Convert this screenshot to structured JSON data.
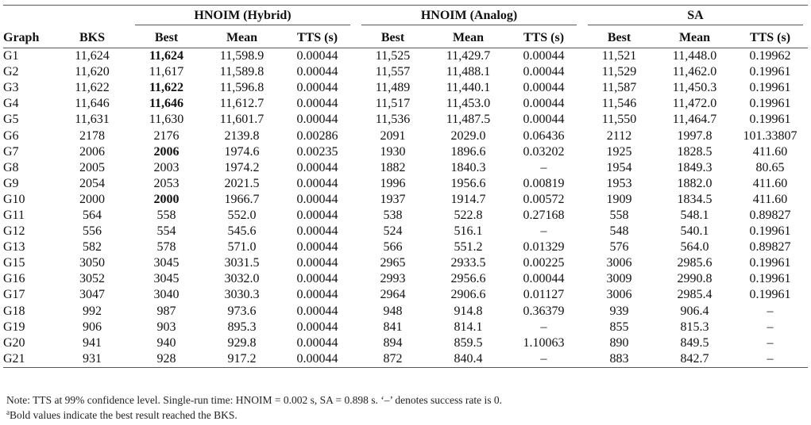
{
  "groups": [
    "HNOIM (Hybrid)",
    "HNOIM (Analog)",
    "SA"
  ],
  "headers": {
    "graph": "Graph",
    "bks": "BKS",
    "best": "Best",
    "mean": "Mean",
    "tts": "TTS (s)"
  },
  "rows": [
    {
      "g": "G1",
      "bks": "11,624",
      "v": [
        "11,624",
        "11,598.9",
        "0.00044",
        "11,525",
        "11,429.7",
        "0.00044",
        "11,521",
        "11,448.0",
        "0.19962"
      ],
      "bold": [
        0
      ]
    },
    {
      "g": "G2",
      "bks": "11,620",
      "v": [
        "11,617",
        "11,589.8",
        "0.00044",
        "11,557",
        "11,488.1",
        "0.00044",
        "11,529",
        "11,462.0",
        "0.19961"
      ],
      "bold": []
    },
    {
      "g": "G3",
      "bks": "11,622",
      "v": [
        "11,622",
        "11,596.8",
        "0.00044",
        "11,489",
        "11,440.1",
        "0.00044",
        "11,587",
        "11,450.3",
        "0.19961"
      ],
      "bold": [
        0
      ]
    },
    {
      "g": "G4",
      "bks": "11,646",
      "v": [
        "11,646",
        "11,612.7",
        "0.00044",
        "11,517",
        "11,453.0",
        "0.00044",
        "11,546",
        "11,472.0",
        "0.19961"
      ],
      "bold": [
        0
      ]
    },
    {
      "g": "G5",
      "bks": "11,631",
      "v": [
        "11,630",
        "11,601.7",
        "0.00044",
        "11,536",
        "11,487.5",
        "0.00044",
        "11,550",
        "11,464.7",
        "0.19961"
      ],
      "bold": []
    },
    {
      "g": "G6",
      "bks": "2178",
      "v": [
        "2176",
        "2139.8",
        "0.00286",
        "2091",
        "2029.0",
        "0.06436",
        "2112",
        "1997.8",
        "101.33807"
      ],
      "bold": []
    },
    {
      "g": "G7",
      "bks": "2006",
      "v": [
        "2006",
        "1974.6",
        "0.00235",
        "1930",
        "1896.6",
        "0.03202",
        "1925",
        "1828.5",
        "411.60"
      ],
      "bold": [
        0
      ]
    },
    {
      "g": "G8",
      "bks": "2005",
      "v": [
        "2003",
        "1974.2",
        "0.00044",
        "1882",
        "1840.3",
        "–",
        "1954",
        "1849.3",
        "80.65"
      ],
      "bold": []
    },
    {
      "g": "G9",
      "bks": "2054",
      "v": [
        "2053",
        "2021.5",
        "0.00044",
        "1996",
        "1956.6",
        "0.00819",
        "1953",
        "1882.0",
        "411.60"
      ],
      "bold": []
    },
    {
      "g": "G10",
      "bks": "2000",
      "v": [
        "2000",
        "1966.7",
        "0.00044",
        "1937",
        "1914.7",
        "0.00572",
        "1909",
        "1834.5",
        "411.60"
      ],
      "bold": [
        0
      ]
    },
    {
      "g": "G11",
      "bks": "564",
      "v": [
        "558",
        "552.0",
        "0.00044",
        "538",
        "522.8",
        "0.27168",
        "558",
        "548.1",
        "0.89827"
      ],
      "bold": []
    },
    {
      "g": "G12",
      "bks": "556",
      "v": [
        "554",
        "545.6",
        "0.00044",
        "524",
        "516.1",
        "–",
        "548",
        "540.1",
        "0.19961"
      ],
      "bold": []
    },
    {
      "g": "G13",
      "bks": "582",
      "v": [
        "578",
        "571.0",
        "0.00044",
        "566",
        "551.2",
        "0.01329",
        "576",
        "564.0",
        "0.89827"
      ],
      "bold": []
    },
    {
      "g": "G15",
      "bks": "3050",
      "v": [
        "3045",
        "3031.5",
        "0.00044",
        "2965",
        "2933.5",
        "0.00225",
        "3006",
        "2985.6",
        "0.19961"
      ],
      "bold": []
    },
    {
      "g": "G16",
      "bks": "3052",
      "v": [
        "3045",
        "3032.0",
        "0.00044",
        "2993",
        "2956.6",
        "0.00044",
        "3009",
        "2990.8",
        "0.19961"
      ],
      "bold": []
    },
    {
      "g": "G17",
      "bks": "3047",
      "v": [
        "3040",
        "3030.3",
        "0.00044",
        "2964",
        "2906.6",
        "0.01127",
        "3006",
        "2985.4",
        "0.19961"
      ],
      "bold": []
    },
    {
      "g": "G18",
      "bks": "992",
      "v": [
        "987",
        "973.6",
        "0.00044",
        "948",
        "914.8",
        "0.36379",
        "939",
        "906.4",
        "–"
      ],
      "bold": []
    },
    {
      "g": "G19",
      "bks": "906",
      "v": [
        "903",
        "895.3",
        "0.00044",
        "841",
        "814.1",
        "–",
        "855",
        "815.3",
        "–"
      ],
      "bold": []
    },
    {
      "g": "G20",
      "bks": "941",
      "v": [
        "940",
        "929.8",
        "0.00044",
        "894",
        "859.5",
        "1.10063",
        "890",
        "849.5",
        "–"
      ],
      "bold": []
    },
    {
      "g": "G21",
      "bks": "931",
      "v": [
        "928",
        "917.2",
        "0.00044",
        "872",
        "840.4",
        "–",
        "883",
        "842.7",
        "–"
      ],
      "bold": []
    }
  ],
  "notes": {
    "line1": "Note: TTS at 99% confidence level. Single-run time: HNOIM = 0.002 s, SA = 0.898 s. ‘–’ denotes success rate is 0.",
    "line2_mark": "a",
    "line2": "Bold values indicate the best result reached the BKS."
  }
}
